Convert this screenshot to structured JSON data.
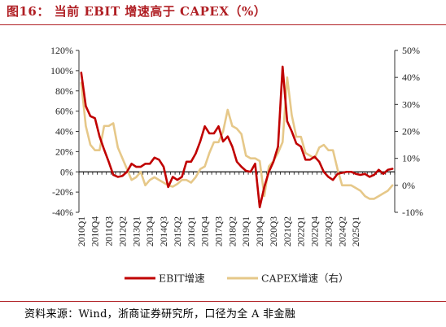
{
  "figure": {
    "title": "图16：  当前 EBIT 增速高于 CAPEX（%）",
    "source": "资料来源：Wind，浙商证券研究所，口径为全 A 非金融"
  },
  "colors": {
    "ebit": "#c00000",
    "capex": "#e6c889",
    "title": "#b01f24",
    "axis": "#333333"
  },
  "chart_data": {
    "type": "line",
    "title": "当前 EBIT 增速高于 CAPEX（%）",
    "x_tick_labels": [
      "2010Q1",
      "2010Q4",
      "2011Q3",
      "2012Q2",
      "2013Q1",
      "2013Q4",
      "2014Q3",
      "2015Q2",
      "2016Q1",
      "2016Q4",
      "2017Q3",
      "2018Q2",
      "2019Q1",
      "2019Q4",
      "2020Q3",
      "2021Q2",
      "2022Q1",
      "2022Q4",
      "2023Q3",
      "2024Q2",
      "2025Q1"
    ],
    "x_tick_step_quarters": 3,
    "y_left": {
      "range": [
        -40,
        120
      ],
      "ticks": [
        "-40%",
        "-20%",
        "0%",
        "20%",
        "40%",
        "60%",
        "80%",
        "100%",
        "120%"
      ],
      "tick_values": [
        -40,
        -20,
        0,
        20,
        40,
        60,
        80,
        100,
        120
      ]
    },
    "y_right": {
      "range": [
        -10,
        50
      ],
      "ticks": [
        "-10%",
        "0%",
        "10%",
        "20%",
        "30%",
        "40%",
        "50%"
      ],
      "tick_values": [
        -10,
        0,
        10,
        20,
        30,
        40,
        50
      ]
    },
    "legend": {
      "position": "bottom",
      "entries": [
        "EBIT增速",
        "CAPEX增速（右）"
      ]
    },
    "series": [
      {
        "name": "EBIT增速",
        "axis": "left",
        "values": [
          98,
          65,
          55,
          53,
          35,
          22,
          10,
          -3,
          -5,
          -4,
          0,
          8,
          5,
          5,
          8,
          8,
          14,
          12,
          5,
          -15,
          -5,
          -8,
          -5,
          10,
          10,
          18,
          30,
          45,
          38,
          38,
          45,
          30,
          35,
          25,
          10,
          5,
          1,
          0,
          8,
          -35,
          -15,
          0,
          10,
          25,
          104,
          50,
          40,
          28,
          25,
          12,
          12,
          15,
          10,
          0,
          -5,
          -8,
          -2,
          -1,
          0,
          0,
          -2,
          -3,
          -2,
          -5,
          -3,
          2,
          -2,
          2,
          3
        ]
      },
      {
        "name": "CAPEX增速（右）",
        "axis": "right",
        "values": [
          38,
          22,
          15,
          13,
          13,
          22,
          22,
          23,
          14,
          10,
          6,
          2,
          3,
          5,
          0,
          2,
          3,
          2,
          1,
          0,
          -0.5,
          0.5,
          2,
          2,
          1,
          3,
          6,
          7,
          12,
          16,
          16,
          20,
          28,
          22,
          21,
          19,
          11,
          10,
          10,
          9,
          -4,
          7,
          9,
          12,
          16,
          40,
          26,
          18,
          18,
          12,
          11,
          10,
          14,
          15,
          13,
          13,
          6,
          0,
          0,
          0,
          -1,
          -2,
          -4,
          -5,
          -5,
          -4,
          -3,
          -2,
          0
        ]
      }
    ]
  }
}
